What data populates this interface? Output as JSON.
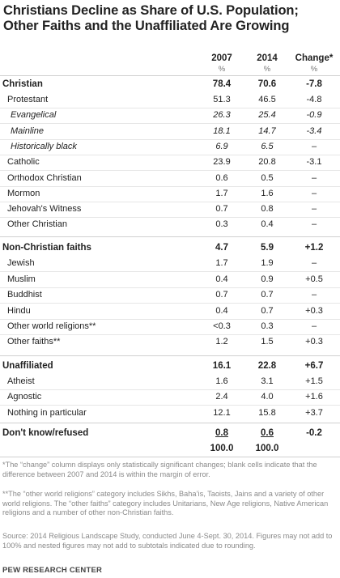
{
  "chart_data": {
    "type": "table",
    "title": "Christians Decline as Share of U.S. Population; Other Faiths and the Unaffiliated Are Growing",
    "columns": [
      "2007",
      "2014",
      "Change*"
    ],
    "units": [
      "%",
      "%",
      "%"
    ],
    "rows": [
      {
        "label": "Christian",
        "level": "cat",
        "values": [
          "78.4",
          "70.6",
          "-7.8"
        ]
      },
      {
        "label": "Protestant",
        "level": "sub",
        "values": [
          "51.3",
          "46.5",
          "-4.8"
        ]
      },
      {
        "label": "Evangelical",
        "level": "subsub",
        "values": [
          "26.3",
          "25.4",
          "-0.9"
        ]
      },
      {
        "label": "Mainline",
        "level": "subsub",
        "values": [
          "18.1",
          "14.7",
          "-3.4"
        ]
      },
      {
        "label": "Historically black",
        "level": "subsub",
        "values": [
          "6.9",
          "6.5",
          "–"
        ]
      },
      {
        "label": "Catholic",
        "level": "sub",
        "values": [
          "23.9",
          "20.8",
          "-3.1"
        ]
      },
      {
        "label": "Orthodox Christian",
        "level": "sub",
        "values": [
          "0.6",
          "0.5",
          "–"
        ]
      },
      {
        "label": "Mormon",
        "level": "sub",
        "values": [
          "1.7",
          "1.6",
          "–"
        ]
      },
      {
        "label": "Jehovah's Witness",
        "level": "sub",
        "values": [
          "0.7",
          "0.8",
          "–"
        ]
      },
      {
        "label": "Other Christian",
        "level": "sub",
        "values": [
          "0.3",
          "0.4",
          "–"
        ]
      },
      {
        "label": "Non-Christian faiths",
        "level": "cat",
        "values": [
          "4.7",
          "5.9",
          "+1.2"
        ]
      },
      {
        "label": "Jewish",
        "level": "sub",
        "values": [
          "1.7",
          "1.9",
          "–"
        ]
      },
      {
        "label": "Muslim",
        "level": "sub",
        "values": [
          "0.4",
          "0.9",
          "+0.5"
        ]
      },
      {
        "label": "Buddhist",
        "level": "sub",
        "values": [
          "0.7",
          "0.7",
          "–"
        ]
      },
      {
        "label": "Hindu",
        "level": "sub",
        "values": [
          "0.4",
          "0.7",
          "+0.3"
        ]
      },
      {
        "label": "Other world religions**",
        "level": "sub",
        "values": [
          "<0.3",
          "0.3",
          "–"
        ]
      },
      {
        "label": "Other faiths**",
        "level": "sub",
        "values": [
          "1.2",
          "1.5",
          "+0.3"
        ]
      },
      {
        "label": "Unaffiliated",
        "level": "cat",
        "values": [
          "16.1",
          "22.8",
          "+6.7"
        ]
      },
      {
        "label": "Atheist",
        "level": "sub",
        "values": [
          "1.6",
          "3.1",
          "+1.5"
        ]
      },
      {
        "label": "Agnostic",
        "level": "sub",
        "values": [
          "2.4",
          "4.0",
          "+1.6"
        ]
      },
      {
        "label": "Nothing in particular",
        "level": "sub",
        "values": [
          "12.1",
          "15.8",
          "+3.7"
        ]
      },
      {
        "label": "Don't know/refused",
        "level": "cat",
        "values": [
          "0.8",
          "0.6",
          "-0.2"
        ]
      },
      {
        "label": "",
        "level": "total",
        "values": [
          "100.0",
          "100.0",
          ""
        ]
      }
    ]
  },
  "notes": {
    "change": "*The “change” column displays only statistically significant changes; blank cells indicate that the difference between 2007 and 2014 is within the margin of error.",
    "other": "**The “other world religions” category includes Sikhs, Baha’is, Taoists, Jains and a variety of other world religions. The “other faiths” category includes Unitarians, New Age religions, Native American religions and a number of other non-Christian faiths.",
    "source": "Source: 2014 Religious Landscape Study, conducted June 4-Sept. 30, 2014. Figures may not add to 100% and nested figures may not add to subtotals indicated due to rounding.",
    "credit": "PEW RESEARCH CENTER"
  }
}
